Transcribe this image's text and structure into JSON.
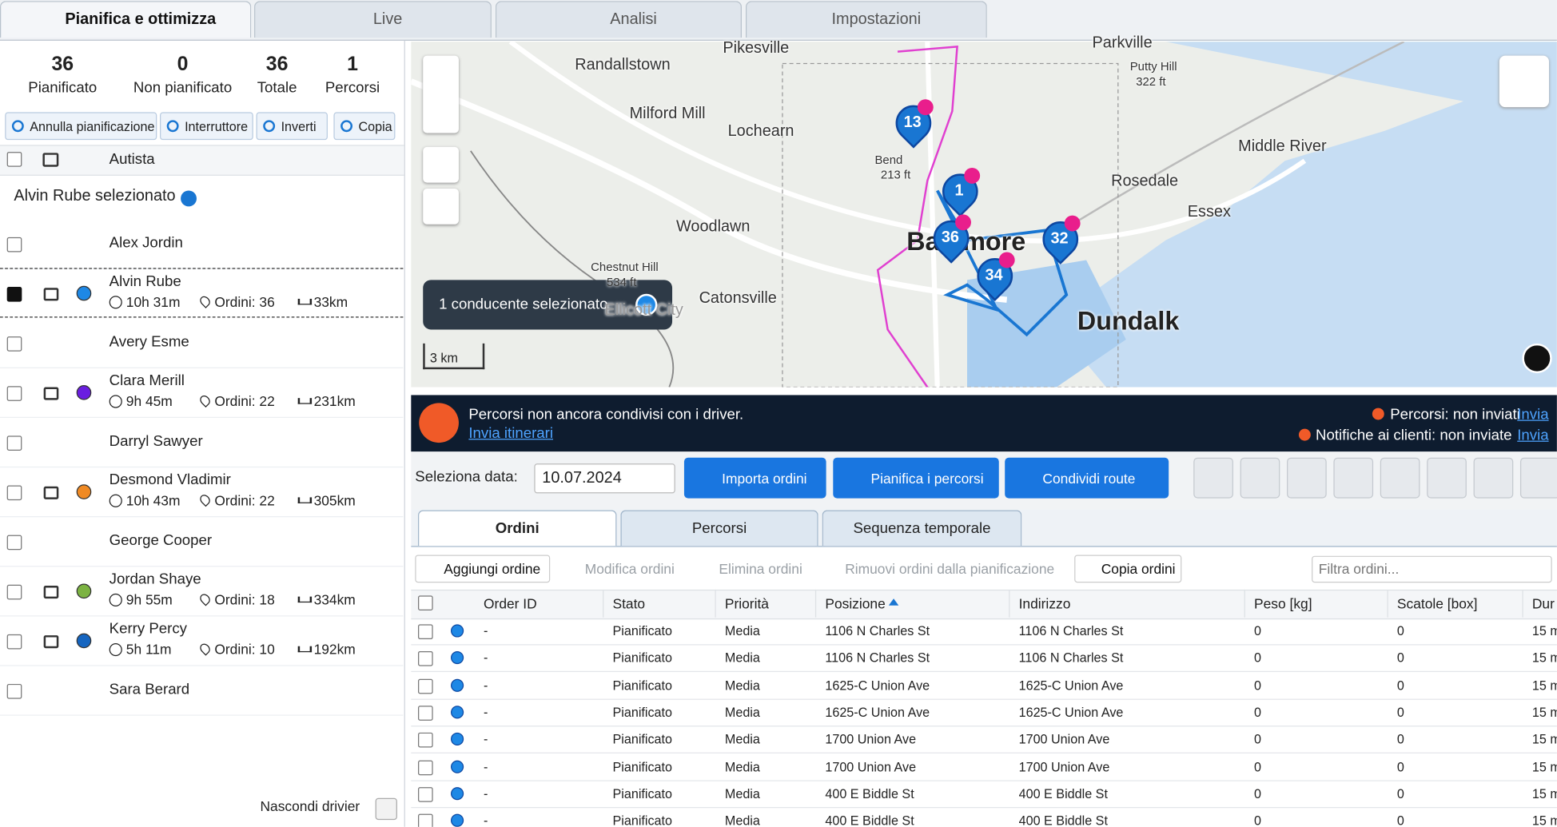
{
  "tabs": [
    "Pianifica e ottimizza",
    "Live",
    "Analisi",
    "Impostazioni"
  ],
  "stats": [
    {
      "value": 36,
      "label": "Pianificato"
    },
    {
      "value": 0,
      "label": "Non pianificato"
    },
    {
      "value": 36,
      "label": "Totale"
    },
    {
      "value": 1,
      "label": "Percorsi"
    }
  ],
  "toolbar": [
    "Annulla pianificazione",
    "Interruttore",
    "Inverti",
    "Copia"
  ],
  "driver_header": "Autista",
  "selection": "Alvin Rube selezionato",
  "drivers": [
    {
      "name": "Alex Jordin"
    },
    {
      "name": "Alvin Rube",
      "time": "10h 31m",
      "orders": "Ordini: 36",
      "distance": "33km",
      "color": "#1e88e5",
      "checked": true
    },
    {
      "name": "Avery Esme"
    },
    {
      "name": "Clara Merill",
      "time": "9h 45m",
      "orders": "Ordini: 22",
      "distance": "231km",
      "color": "#6a1ee0"
    },
    {
      "name": "Darryl Sawyer"
    },
    {
      "name": "Desmond Vladimir",
      "time": "10h 43m",
      "orders": "Ordini: 22",
      "distance": "305km",
      "color": "#f08a24"
    },
    {
      "name": "George Cooper"
    },
    {
      "name": "Jordan Shaye",
      "time": "9h 55m",
      "orders": "Ordini: 18",
      "distance": "334km",
      "color": "#7cb342"
    },
    {
      "name": "Kerry Percy",
      "time": "5h 11m",
      "orders": "Ordini: 10",
      "distance": "192km",
      "color": "#1565c0"
    },
    {
      "name": "Sara Berard"
    }
  ],
  "hide_drivers": "Nascondi drivier",
  "map": {
    "places": [
      "Pikesville",
      "Parkville",
      "Putty Hill",
      "322 ft",
      "Randallstown",
      "Milford Mill",
      "Lochearn",
      "Middle River",
      "Rosedale",
      "Essex",
      "Woodlawn",
      "Baltimore",
      "Chestnut Hill",
      "534 ft",
      "Catonsville",
      "Dundalk",
      "Bend",
      "213 ft",
      "Ellicott City"
    ],
    "markers": [
      "13",
      "1",
      "36",
      "32",
      "34"
    ],
    "scale": "3 km",
    "toast": "1 conducente selezionato"
  },
  "banner": {
    "message": "Percorsi non ancora condivisi con i driver.",
    "link": "Invia itinerari",
    "status1": "Percorsi: non inviati",
    "status1_link": "Invia",
    "status2": "Notifiche ai clienti: non inviate",
    "status2_link": "Invia"
  },
  "date_label": "Seleziona data:",
  "date": "10.07.2024",
  "buttons": [
    "Importa ordini",
    "Pianifica i percorsi",
    "Condividi route"
  ],
  "subtabs": [
    "Ordini",
    "Percorsi",
    "Sequenza temporale"
  ],
  "actions": [
    "Aggiungi ordine",
    "Modifica ordini",
    "Elimina ordini",
    "Rimuovi ordini dalla pianificazione",
    "Copia ordini"
  ],
  "filter_placeholder": "Filtra ordini...",
  "table": {
    "columns": [
      "Order ID",
      "Stato",
      "Priorità",
      "Posizione",
      "Indirizzo",
      "Peso [kg]",
      "Scatole [box]",
      "Dur"
    ],
    "rows": [
      [
        "-",
        "Pianificato",
        "Media",
        "1106 N Charles St",
        "1106 N Charles St",
        "0",
        "0",
        "15 m"
      ],
      [
        "-",
        "Pianificato",
        "Media",
        "1106 N Charles St",
        "1106 N Charles St",
        "0",
        "0",
        "15 m"
      ],
      [
        "-",
        "Pianificato",
        "Media",
        "1625-C Union Ave",
        "1625-C Union Ave",
        "0",
        "0",
        "15 m"
      ],
      [
        "-",
        "Pianificato",
        "Media",
        "1625-C Union Ave",
        "1625-C Union Ave",
        "0",
        "0",
        "15 m"
      ],
      [
        "-",
        "Pianificato",
        "Media",
        "1700 Union Ave",
        "1700 Union Ave",
        "0",
        "0",
        "15 m"
      ],
      [
        "-",
        "Pianificato",
        "Media",
        "1700 Union Ave",
        "1700 Union Ave",
        "0",
        "0",
        "15 m"
      ],
      [
        "-",
        "Pianificato",
        "Media",
        "400 E Biddle St",
        "400 E Biddle St",
        "0",
        "0",
        "15 m"
      ],
      [
        "-",
        "Pianificato",
        "Media",
        "400 E Biddle St",
        "400 E Biddle St",
        "0",
        "0",
        "15 m"
      ]
    ]
  }
}
